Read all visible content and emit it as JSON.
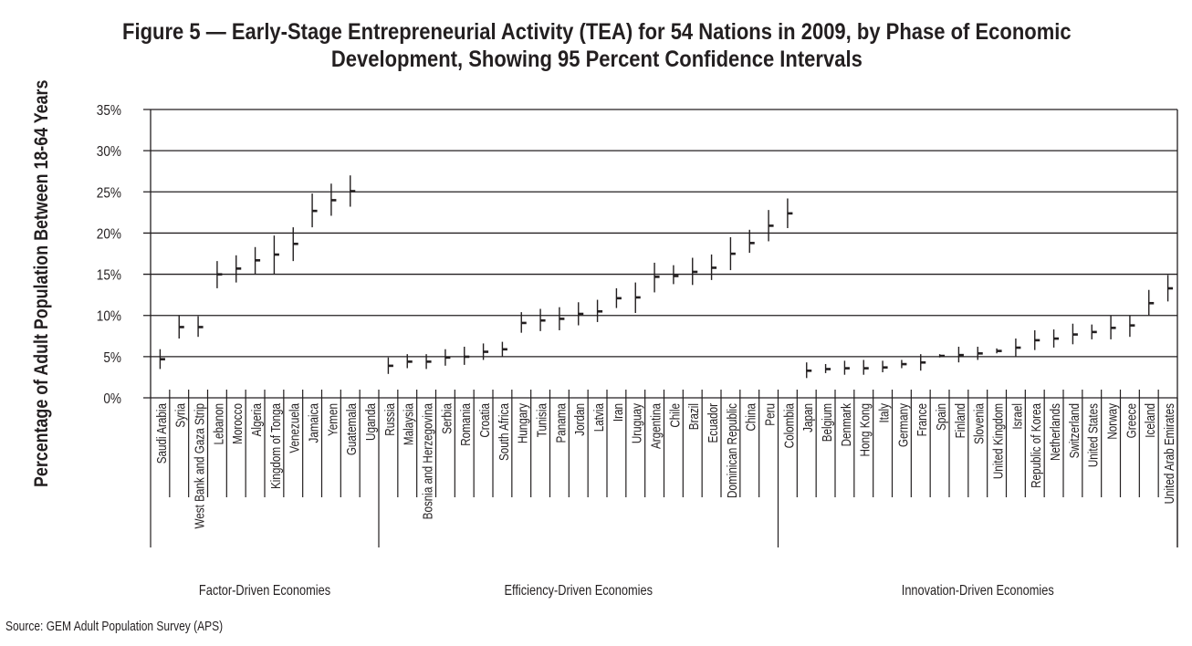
{
  "chart_data": {
    "type": "scatter",
    "subtype": "error-bar",
    "title_line1": "Figure 5 — Early-Stage Entrepreneurial Activity (TEA) for 54 Nations in 2009, by Phase of Economic",
    "title_line2": "Development, Showing 95 Percent Confidence Intervals",
    "xlabel": "",
    "ylabel": "Percentage of Adult Population Between 18-64 Years",
    "ylim": [
      0,
      35
    ],
    "yticks": [
      "0%",
      "5%",
      "10%",
      "15%",
      "20%",
      "25%",
      "30%",
      "35%"
    ],
    "ytick_values": [
      0,
      5,
      10,
      15,
      20,
      25,
      30,
      35
    ],
    "grid": true,
    "source": "Source: GEM Adult Population Survey (APS)",
    "groups": [
      {
        "name": "Factor-Driven Economies",
        "start": 0,
        "end": 11
      },
      {
        "name": "Efficiency-Driven Economies",
        "start": 12,
        "end": 32
      },
      {
        "name": "Innovation-Driven Economies",
        "start": 33,
        "end": 53
      }
    ],
    "points": [
      {
        "country": "Saudi Arabia",
        "value": 4.7,
        "low": 3.5,
        "high": 5.9
      },
      {
        "country": "Syria",
        "value": 8.6,
        "low": 7.2,
        "high": 10.0
      },
      {
        "country": "West Bank and Gaza Strip",
        "value": 8.6,
        "low": 7.4,
        "high": 9.9
      },
      {
        "country": "Lebanon",
        "value": 15.0,
        "low": 13.3,
        "high": 16.6
      },
      {
        "country": "Morocco",
        "value": 15.7,
        "low": 14.0,
        "high": 17.3
      },
      {
        "country": "Algeria",
        "value": 16.7,
        "low": 15.0,
        "high": 18.3
      },
      {
        "country": "Kingdom of Tonga",
        "value": 17.4,
        "low": 15.0,
        "high": 19.7
      },
      {
        "country": "Venezuela",
        "value": 18.7,
        "low": 16.6,
        "high": 20.7
      },
      {
        "country": "Jamaica",
        "value": 22.7,
        "low": 20.7,
        "high": 24.8
      },
      {
        "country": "Yemen",
        "value": 24.0,
        "low": 22.1,
        "high": 26.0
      },
      {
        "country": "Guatemala",
        "value": 25.1,
        "low": 23.2,
        "high": 27.0
      },
      {
        "country": "Uganda",
        "value": null,
        "low": null,
        "high": null
      },
      {
        "country": "Russia",
        "value": 3.9,
        "low": 2.9,
        "high": 4.9
      },
      {
        "country": "Malaysia",
        "value": 4.4,
        "low": 3.6,
        "high": 5.3
      },
      {
        "country": "Bosnia and Herzegovina",
        "value": 4.4,
        "low": 3.5,
        "high": 5.3
      },
      {
        "country": "Serbia",
        "value": 4.9,
        "low": 3.9,
        "high": 5.9
      },
      {
        "country": "Romania",
        "value": 5.0,
        "low": 4.0,
        "high": 6.2
      },
      {
        "country": "Croatia",
        "value": 5.6,
        "low": 4.6,
        "high": 6.6
      },
      {
        "country": "South Africa",
        "value": 5.9,
        "low": 5.0,
        "high": 6.8
      },
      {
        "country": "Hungary",
        "value": 9.1,
        "low": 7.9,
        "high": 10.4
      },
      {
        "country": "Tunisia",
        "value": 9.4,
        "low": 8.1,
        "high": 10.8
      },
      {
        "country": "Panama",
        "value": 9.6,
        "low": 8.2,
        "high": 11.0
      },
      {
        "country": "Jordan",
        "value": 10.2,
        "low": 8.8,
        "high": 11.6
      },
      {
        "country": "Latvia",
        "value": 10.5,
        "low": 9.2,
        "high": 11.9
      },
      {
        "country": "Iran",
        "value": 12.1,
        "low": 10.9,
        "high": 13.3
      },
      {
        "country": "Uruguay",
        "value": 12.2,
        "low": 10.3,
        "high": 14.0
      },
      {
        "country": "Argentina",
        "value": 14.7,
        "low": 12.8,
        "high": 16.4
      },
      {
        "country": "Chile",
        "value": 14.8,
        "low": 13.8,
        "high": 16.1
      },
      {
        "country": "Brazil",
        "value": 15.3,
        "low": 13.7,
        "high": 17.0
      },
      {
        "country": "Ecuador",
        "value": 15.8,
        "low": 14.3,
        "high": 17.4
      },
      {
        "country": "Dominican Republic",
        "value": 17.5,
        "low": 15.5,
        "high": 19.5
      },
      {
        "country": "China",
        "value": 18.8,
        "low": 17.6,
        "high": 20.4
      },
      {
        "country": "Peru",
        "value": 20.9,
        "low": 19.0,
        "high": 22.8
      },
      {
        "country": "Colombia",
        "value": 22.4,
        "low": 20.6,
        "high": 24.2
      },
      {
        "country": "Japan",
        "value": 3.3,
        "low": 2.4,
        "high": 4.3
      },
      {
        "country": "Belgium",
        "value": 3.5,
        "low": 3.0,
        "high": 4.1
      },
      {
        "country": "Denmark",
        "value": 3.6,
        "low": 2.8,
        "high": 4.5
      },
      {
        "country": "Hong Kong",
        "value": 3.6,
        "low": 2.8,
        "high": 4.6
      },
      {
        "country": "Italy",
        "value": 3.7,
        "low": 3.1,
        "high": 4.5
      },
      {
        "country": "Germany",
        "value": 4.1,
        "low": 3.6,
        "high": 4.6
      },
      {
        "country": "France",
        "value": 4.3,
        "low": 3.3,
        "high": 5.3
      },
      {
        "country": "Spain",
        "value": 5.1,
        "low": 4.9,
        "high": 5.3
      },
      {
        "country": "Finland",
        "value": 5.2,
        "low": 4.3,
        "high": 6.2
      },
      {
        "country": "Slovenia",
        "value": 5.4,
        "low": 4.6,
        "high": 6.2
      },
      {
        "country": "United Kingdom",
        "value": 5.7,
        "low": 5.4,
        "high": 6.0
      },
      {
        "country": "Israel",
        "value": 6.1,
        "low": 5.0,
        "high": 7.2
      },
      {
        "country": "Republic of Korea",
        "value": 7.0,
        "low": 5.8,
        "high": 8.2
      },
      {
        "country": "Netherlands",
        "value": 7.2,
        "low": 6.1,
        "high": 8.3
      },
      {
        "country": "Switzerland",
        "value": 7.7,
        "low": 6.5,
        "high": 9.0
      },
      {
        "country": "United States",
        "value": 8.0,
        "low": 7.1,
        "high": 8.9
      },
      {
        "country": "Norway",
        "value": 8.5,
        "low": 7.1,
        "high": 10.0
      },
      {
        "country": "Greece",
        "value": 8.8,
        "low": 7.4,
        "high": 10.0
      },
      {
        "country": "Iceland",
        "value": 11.5,
        "low": 10.0,
        "high": 13.1
      },
      {
        "country": "United Arab Emirates",
        "value": 13.3,
        "low": 11.7,
        "high": 14.9
      }
    ]
  }
}
